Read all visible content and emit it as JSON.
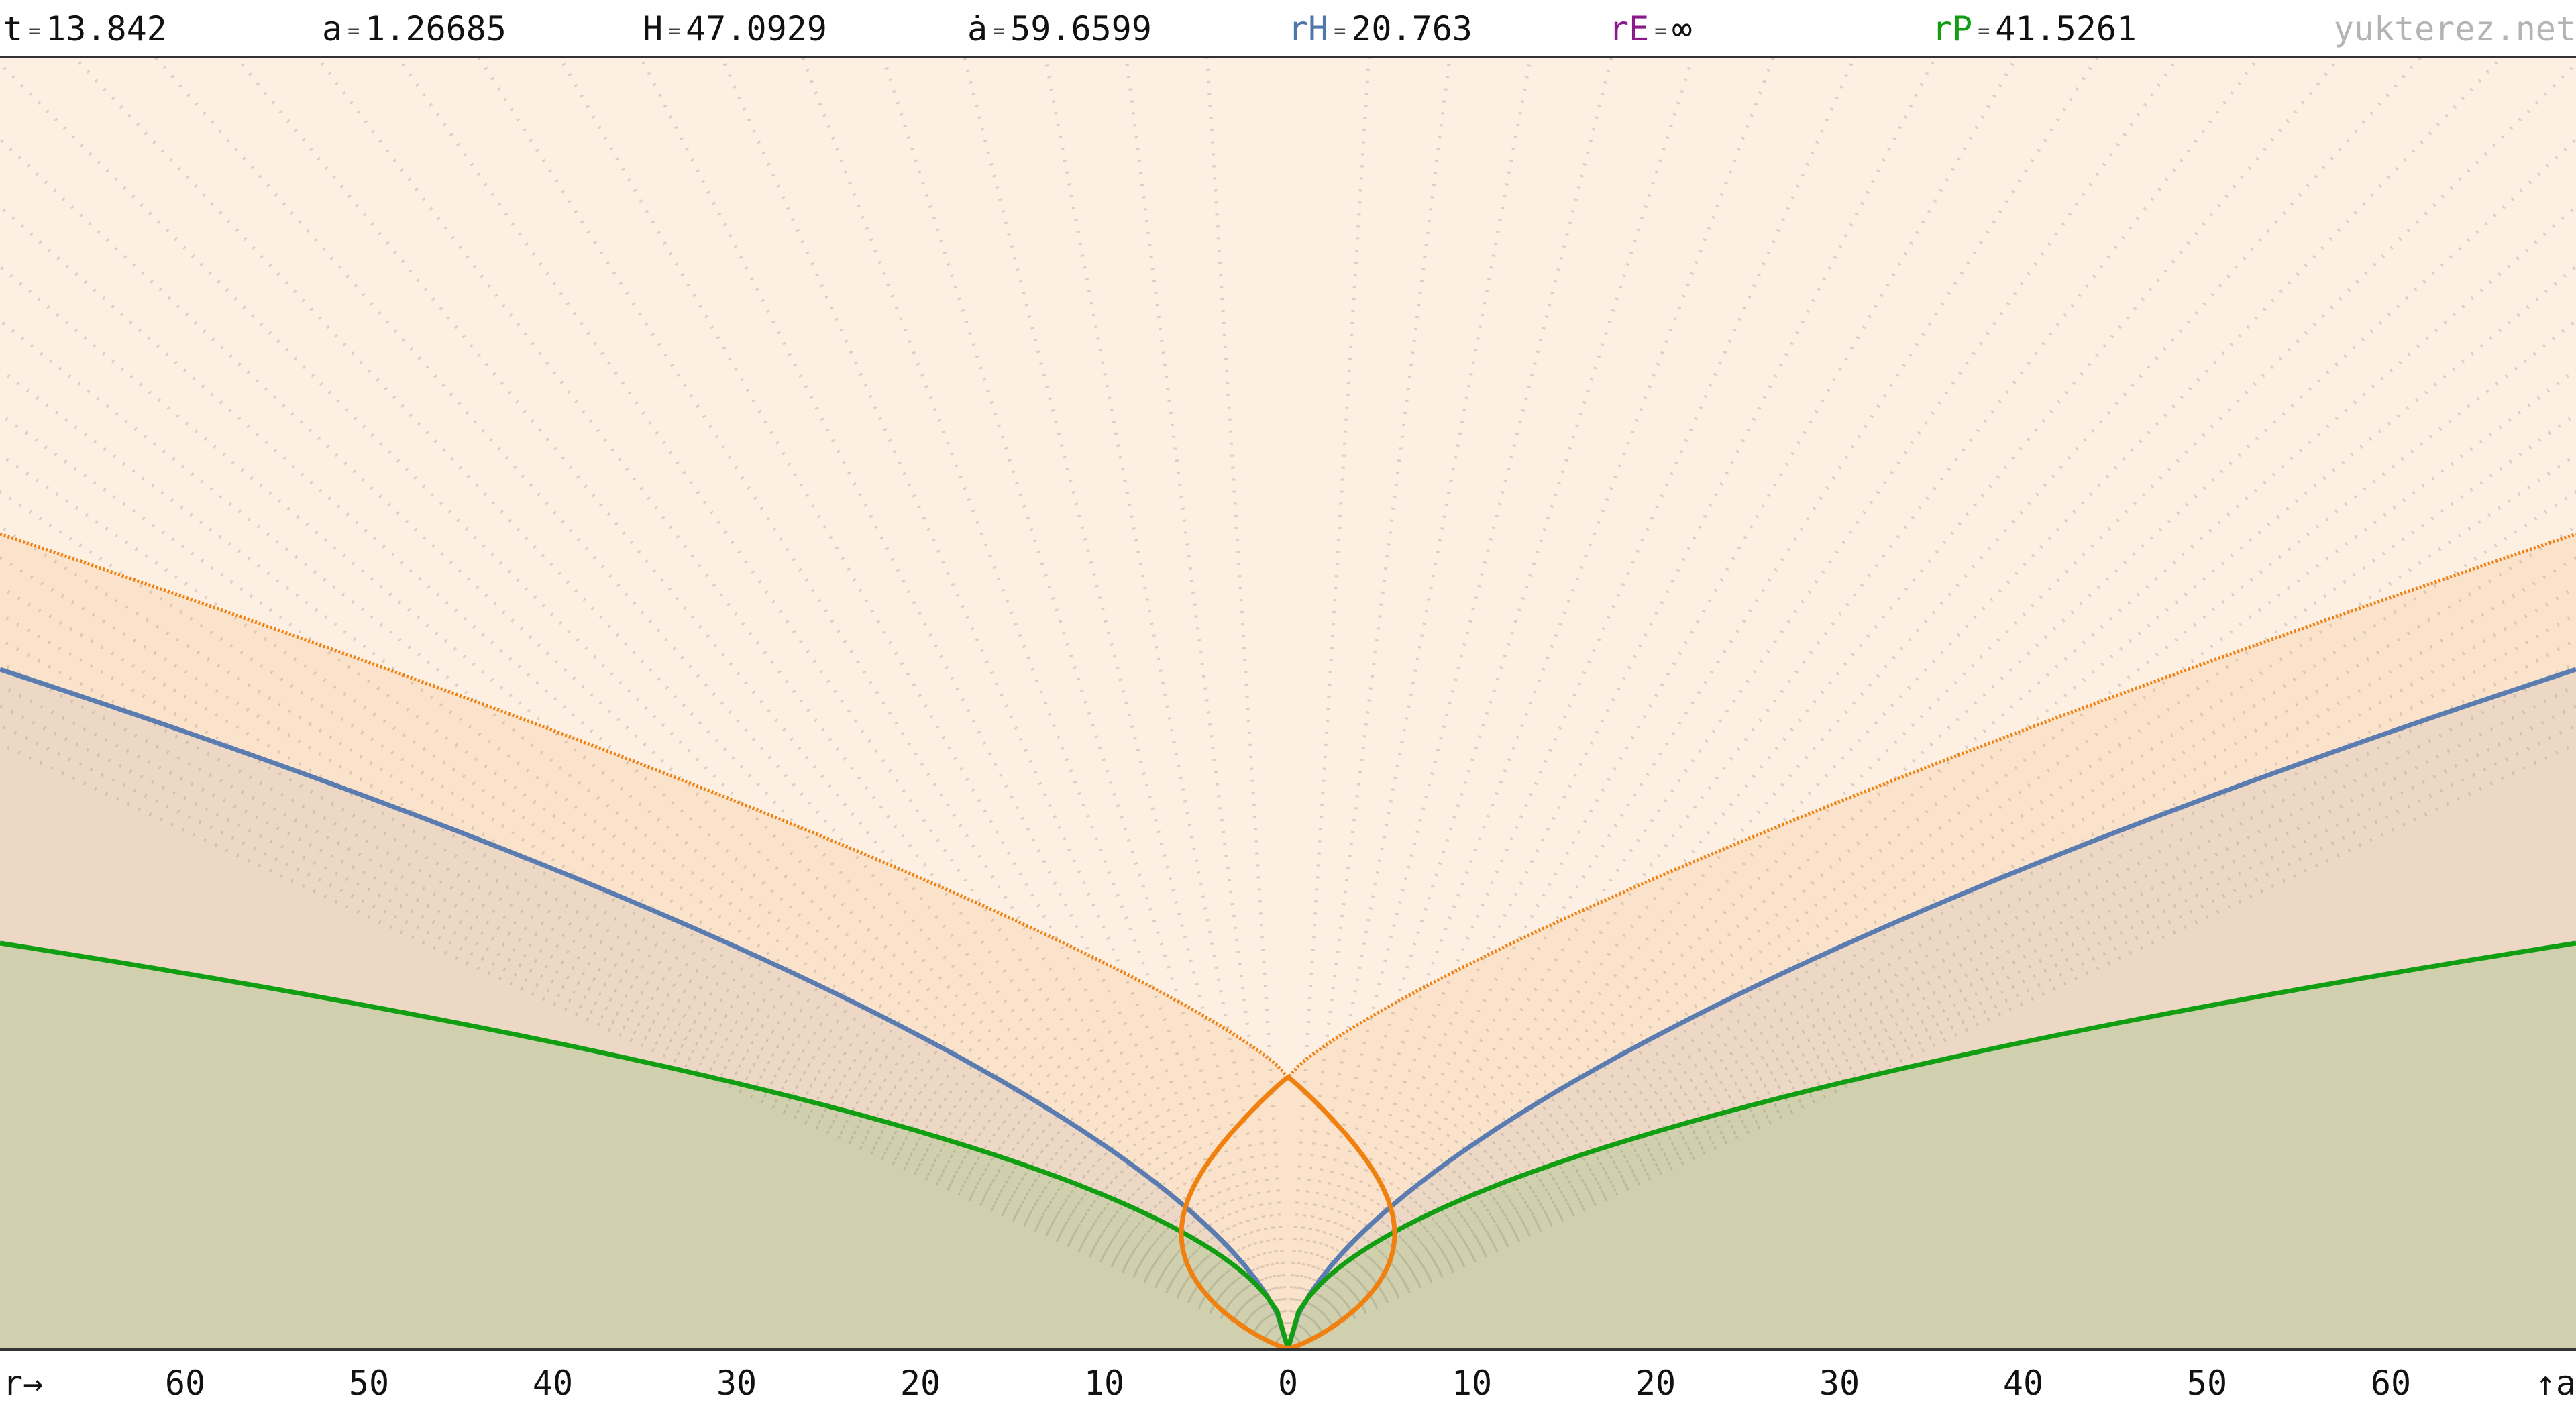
{
  "readouts": {
    "t": {
      "label": "t",
      "value": "13.842"
    },
    "a": {
      "label": "a",
      "value": "1.26685"
    },
    "H": {
      "label": "H",
      "value": "47.0929"
    },
    "adot": {
      "label": "ȧ",
      "value": "59.6599"
    },
    "rH": {
      "label": "rH",
      "value": "20.763"
    },
    "rE": {
      "label": "rE",
      "value": "∞"
    },
    "rP": {
      "label": "rP",
      "value": "41.5261"
    },
    "eq": "="
  },
  "watermark": "yukterez.net",
  "axis": {
    "left_label": "r→",
    "right_label": "↑a",
    "ticks": [
      "60",
      "50",
      "40",
      "30",
      "20",
      "10",
      "0",
      "10",
      "20",
      "30",
      "40",
      "50",
      "60"
    ]
  },
  "colors": {
    "background": "#fdf0e2",
    "light_cone": "#f08010",
    "hubble_sphere": "#5a7cb0",
    "particle_horizon": "#129e12",
    "rH_label": "#4f77aa",
    "rE_label": "#8a1a8a",
    "rP_label": "#129e12"
  },
  "plot": {
    "r_range": [
      -70,
      70
    ],
    "a_range": [
      0,
      1.26685
    ],
    "rH": 20.763,
    "rP": 41.5261,
    "t": 13.842
  }
}
